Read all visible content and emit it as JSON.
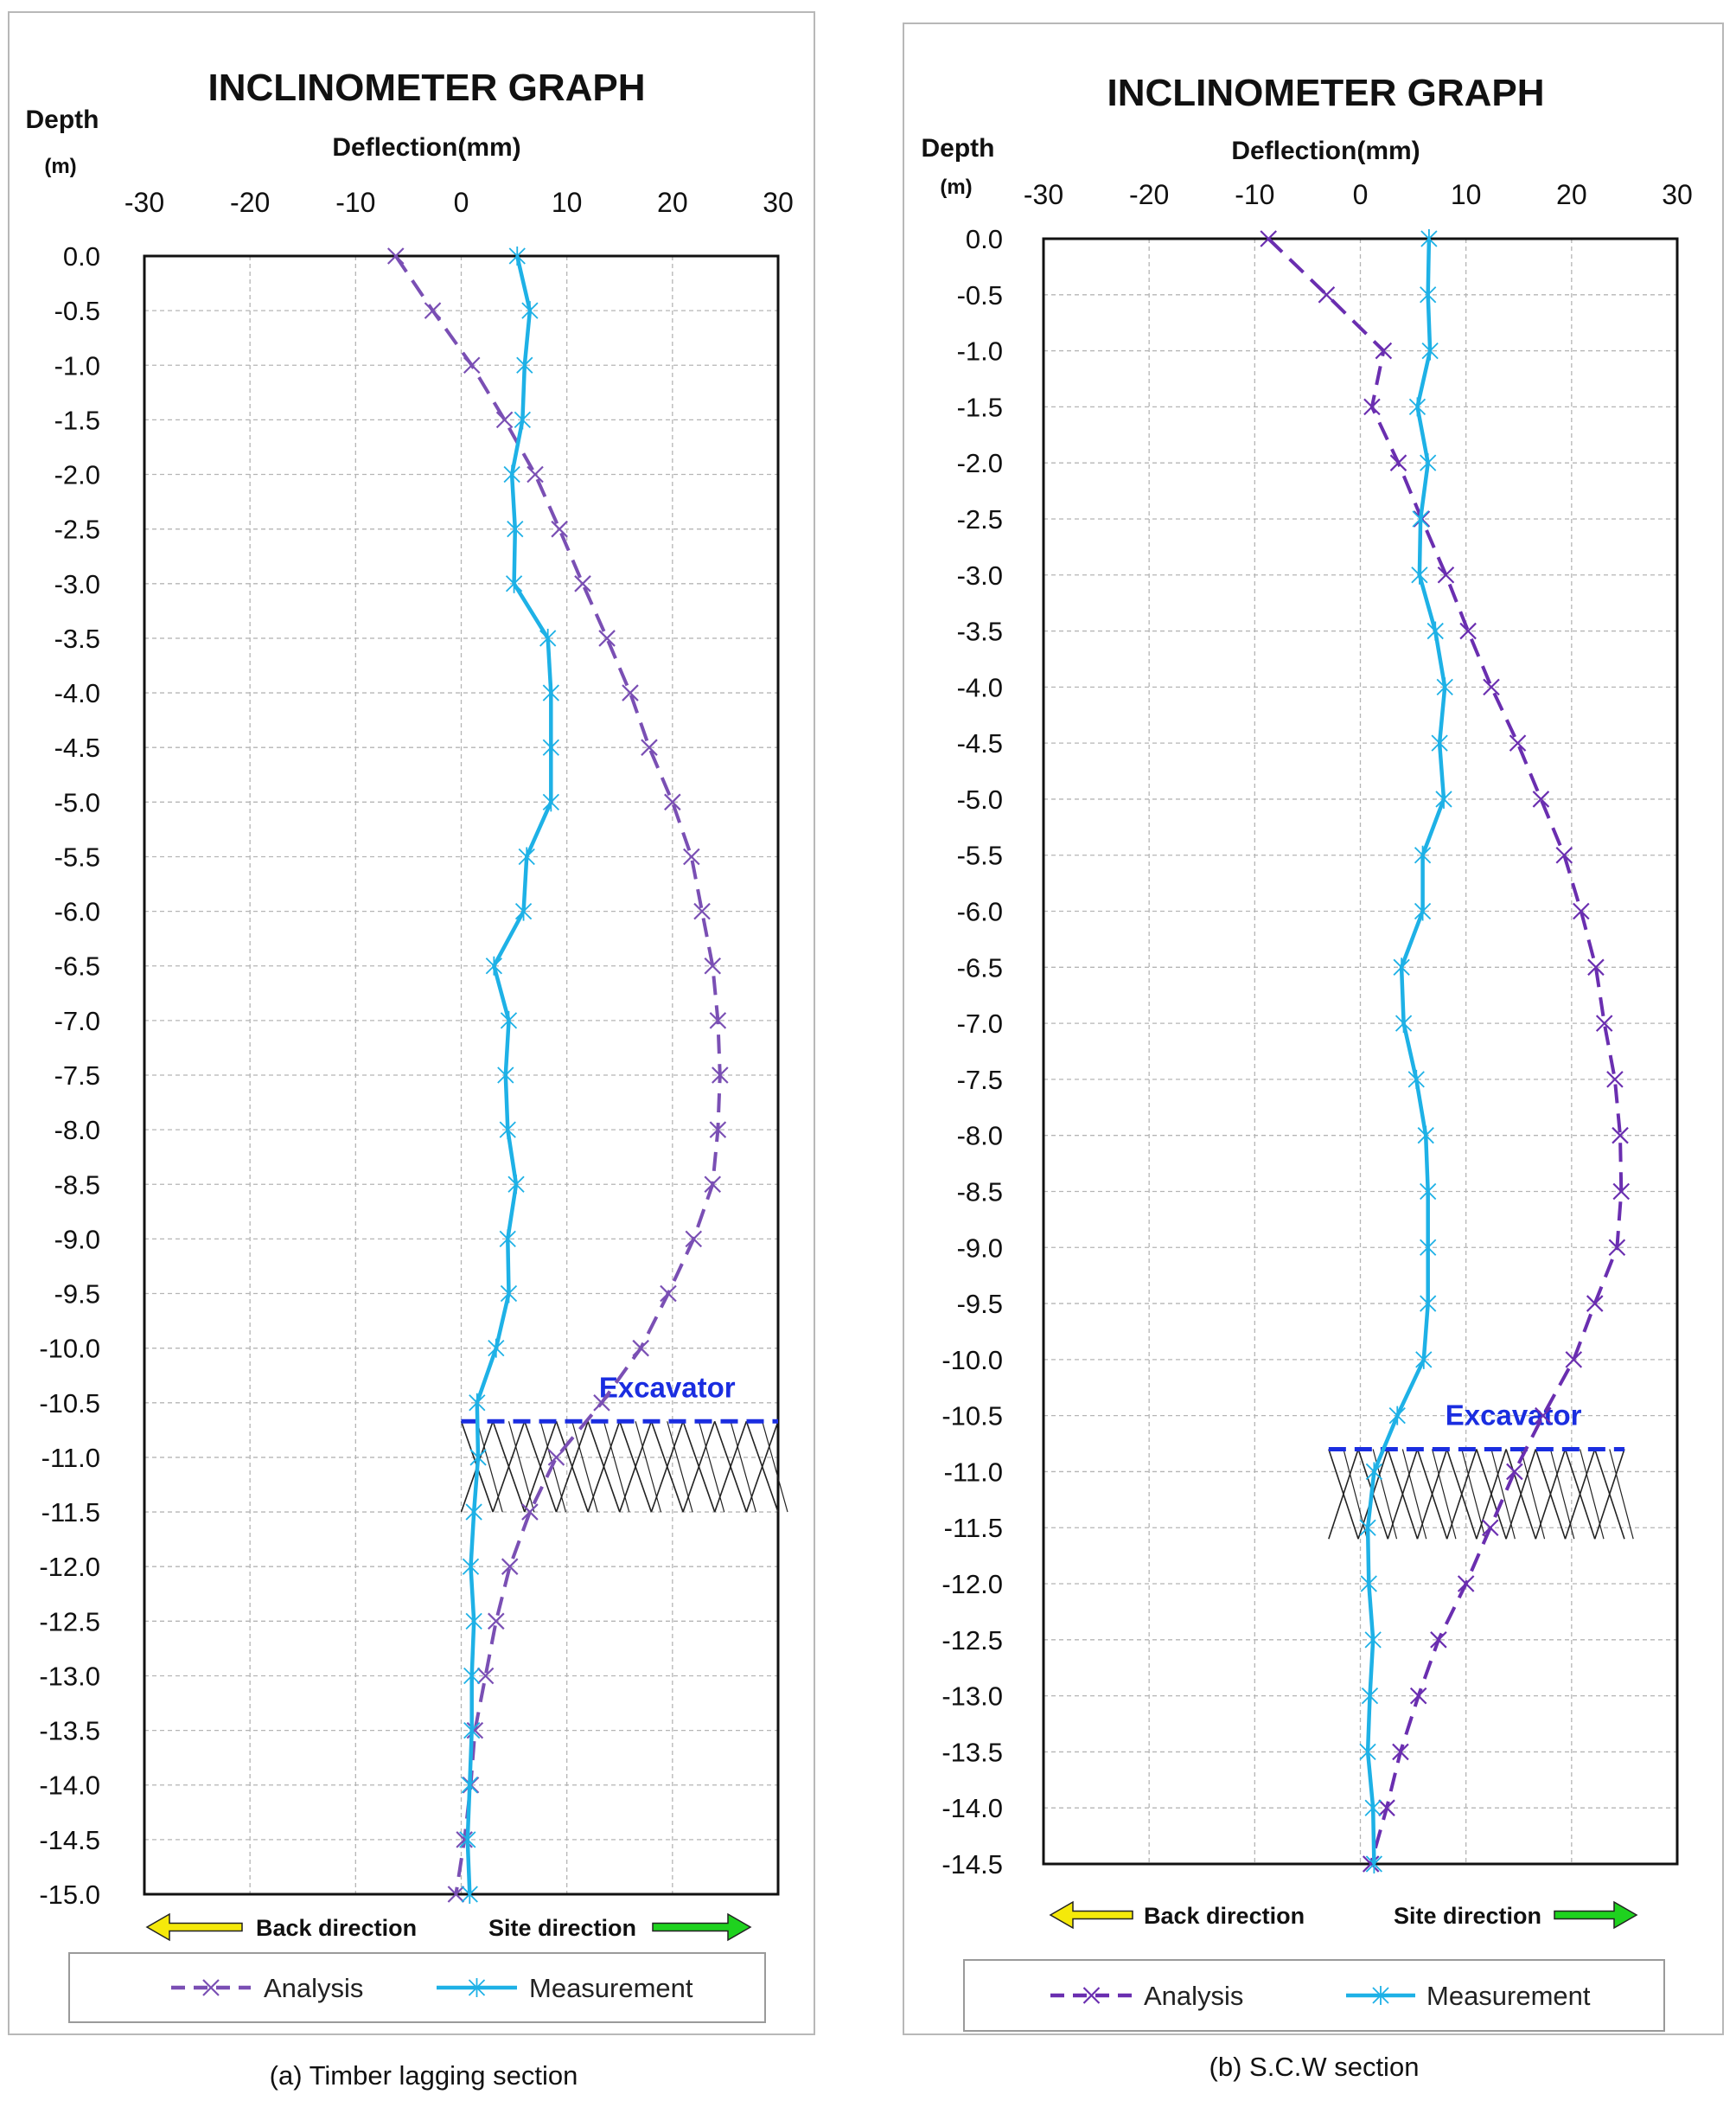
{
  "charts": [
    {
      "type": "line",
      "title": "INCLINOMETER GRAPH",
      "ylabel_line1": "Depth",
      "ylabel_line2": "(m)",
      "xlabel": "Deflection(mm)",
      "xlim": [
        -30,
        30
      ],
      "ylim": [
        -15.0,
        0.0
      ],
      "xticks": [
        "-30",
        "-20",
        "-10",
        "0",
        "10",
        "20",
        "30"
      ],
      "yticks": [
        "0.0",
        "-0.5",
        "-1.0",
        "-1.5",
        "-2.0",
        "-2.5",
        "-3.0",
        "-3.5",
        "-4.0",
        "-4.5",
        "-5.0",
        "-5.5",
        "-6.0",
        "-6.5",
        "-7.0",
        "-7.5",
        "-8.0",
        "-8.5",
        "-9.0",
        "-9.5",
        "-10.0",
        "-10.5",
        "-11.0",
        "-11.5",
        "-12.0",
        "-12.5",
        "-13.0",
        "-13.5",
        "-14.0",
        "-14.5",
        "-15.0"
      ],
      "grid": true,
      "legend_position": "bottom",
      "direction_back": "Back direction",
      "direction_site": "Site direction",
      "annotation": "Excavator",
      "excavator_depth": -10.67,
      "excavator_x_start": 0,
      "hatch_depth_range": [
        -10.67,
        -11.5
      ],
      "caption": "(a) Timber lagging section",
      "series": [
        {
          "name": "Analysis",
          "color": "#7a4fb4",
          "marker": "x",
          "dashed": true,
          "depth": [
            0.0,
            -0.5,
            -1.0,
            -1.5,
            -2.0,
            -2.5,
            -3.0,
            -3.5,
            -4.0,
            -4.5,
            -5.0,
            -5.5,
            -6.0,
            -6.5,
            -7.0,
            -7.5,
            -8.0,
            -8.5,
            -9.0,
            -9.5,
            -10.0,
            -10.5,
            -11.0,
            -11.5,
            -12.0,
            -12.5,
            -13.0,
            -13.5,
            -14.0,
            -14.5,
            -15.0
          ],
          "deflection": [
            -6.2,
            -2.7,
            1.0,
            4.1,
            7.0,
            9.3,
            11.5,
            13.8,
            16.0,
            17.8,
            20.0,
            21.8,
            22.8,
            23.8,
            24.3,
            24.5,
            24.3,
            23.8,
            22.0,
            19.6,
            17.0,
            13.3,
            9.0,
            6.5,
            4.6,
            3.3,
            2.3,
            1.3,
            0.9,
            0.3,
            -0.5
          ]
        },
        {
          "name": "Measurement",
          "color": "#1eb1e6",
          "marker": "star",
          "dashed": false,
          "depth": [
            0.0,
            -0.5,
            -1.0,
            -1.5,
            -2.0,
            -2.5,
            -3.0,
            -3.5,
            -4.0,
            -4.5,
            -5.0,
            -5.5,
            -6.0,
            -6.5,
            -7.0,
            -7.5,
            -8.0,
            -8.5,
            -9.0,
            -9.5,
            -10.0,
            -10.5,
            -11.0,
            -11.5,
            -12.0,
            -12.5,
            -13.0,
            -13.5,
            -14.0,
            -14.5,
            -15.0
          ],
          "deflection": [
            5.3,
            6.5,
            6.0,
            5.8,
            4.8,
            5.1,
            5.0,
            8.2,
            8.5,
            8.5,
            8.5,
            6.2,
            5.9,
            3.1,
            4.5,
            4.2,
            4.4,
            5.2,
            4.4,
            4.5,
            3.3,
            1.5,
            1.6,
            1.2,
            0.9,
            1.2,
            1.0,
            1.0,
            0.8,
            0.6,
            0.8
          ]
        }
      ]
    },
    {
      "type": "line",
      "title": "INCLINOMETER GRAPH",
      "ylabel_line1": "Depth",
      "ylabel_line2": "(m)",
      "xlabel": "Deflection(mm)",
      "xlim": [
        -30,
        30
      ],
      "ylim": [
        -14.5,
        0.0
      ],
      "xticks": [
        "-30",
        "-20",
        "-10",
        "0",
        "10",
        "20",
        "30"
      ],
      "yticks": [
        "0.0",
        "-0.5",
        "-1.0",
        "-1.5",
        "-2.0",
        "-2.5",
        "-3.0",
        "-3.5",
        "-4.0",
        "-4.5",
        "-5.0",
        "-5.5",
        "-6.0",
        "-6.5",
        "-7.0",
        "-7.5",
        "-8.0",
        "-8.5",
        "-9.0",
        "-9.5",
        "-10.0",
        "-10.5",
        "-11.0",
        "-11.5",
        "-12.0",
        "-12.5",
        "-13.0",
        "-13.5",
        "-14.0",
        "-14.5"
      ],
      "grid": true,
      "legend_position": "bottom",
      "direction_back": "Back direction",
      "direction_site": "Site direction",
      "annotation": "Excavator",
      "excavator_depth": -10.8,
      "excavator_x_start": -3,
      "hatch_depth_range": [
        -10.8,
        -11.6
      ],
      "caption": "(b) S.C.W section",
      "series": [
        {
          "name": "Analysis",
          "color": "#6a2eb0",
          "marker": "x",
          "dashed": true,
          "depth": [
            0.0,
            -0.5,
            -1.0,
            -1.5,
            -2.0,
            -2.5,
            -3.0,
            -3.5,
            -4.0,
            -4.5,
            -5.0,
            -5.5,
            -6.0,
            -6.5,
            -7.0,
            -7.5,
            -8.0,
            -8.5,
            -9.0,
            -9.5,
            -10.0,
            -10.5,
            -11.0,
            -11.5,
            -12.0,
            -12.5,
            -13.0,
            -13.5,
            -14.0,
            -14.5
          ],
          "deflection": [
            -8.7,
            -3.2,
            2.2,
            1.1,
            3.6,
            5.8,
            8.1,
            10.2,
            12.4,
            14.9,
            17.1,
            19.3,
            20.9,
            22.3,
            23.1,
            24.1,
            24.6,
            24.7,
            24.3,
            22.2,
            20.2,
            17.3,
            14.6,
            12.3,
            10.0,
            7.4,
            5.5,
            3.8,
            2.5,
            1.0
          ]
        },
        {
          "name": "Measurement",
          "color": "#1eb1e6",
          "marker": "star",
          "dashed": false,
          "depth": [
            0.0,
            -0.5,
            -1.0,
            -1.5,
            -2.0,
            -2.5,
            -3.0,
            -3.5,
            -4.0,
            -4.5,
            -5.0,
            -5.5,
            -6.0,
            -6.5,
            -7.0,
            -7.5,
            -8.0,
            -8.5,
            -9.0,
            -9.5,
            -10.0,
            -10.5,
            -11.0,
            -11.5,
            -12.0,
            -12.5,
            -13.0,
            -13.5,
            -14.0,
            -14.5
          ],
          "deflection": [
            6.5,
            6.4,
            6.6,
            5.4,
            6.4,
            5.7,
            5.6,
            7.1,
            8.0,
            7.5,
            7.9,
            5.9,
            5.9,
            3.9,
            4.1,
            5.3,
            6.2,
            6.4,
            6.4,
            6.4,
            6.0,
            3.5,
            1.3,
            0.7,
            0.8,
            1.2,
            0.9,
            0.7,
            1.2,
            1.3
          ]
        }
      ]
    }
  ]
}
